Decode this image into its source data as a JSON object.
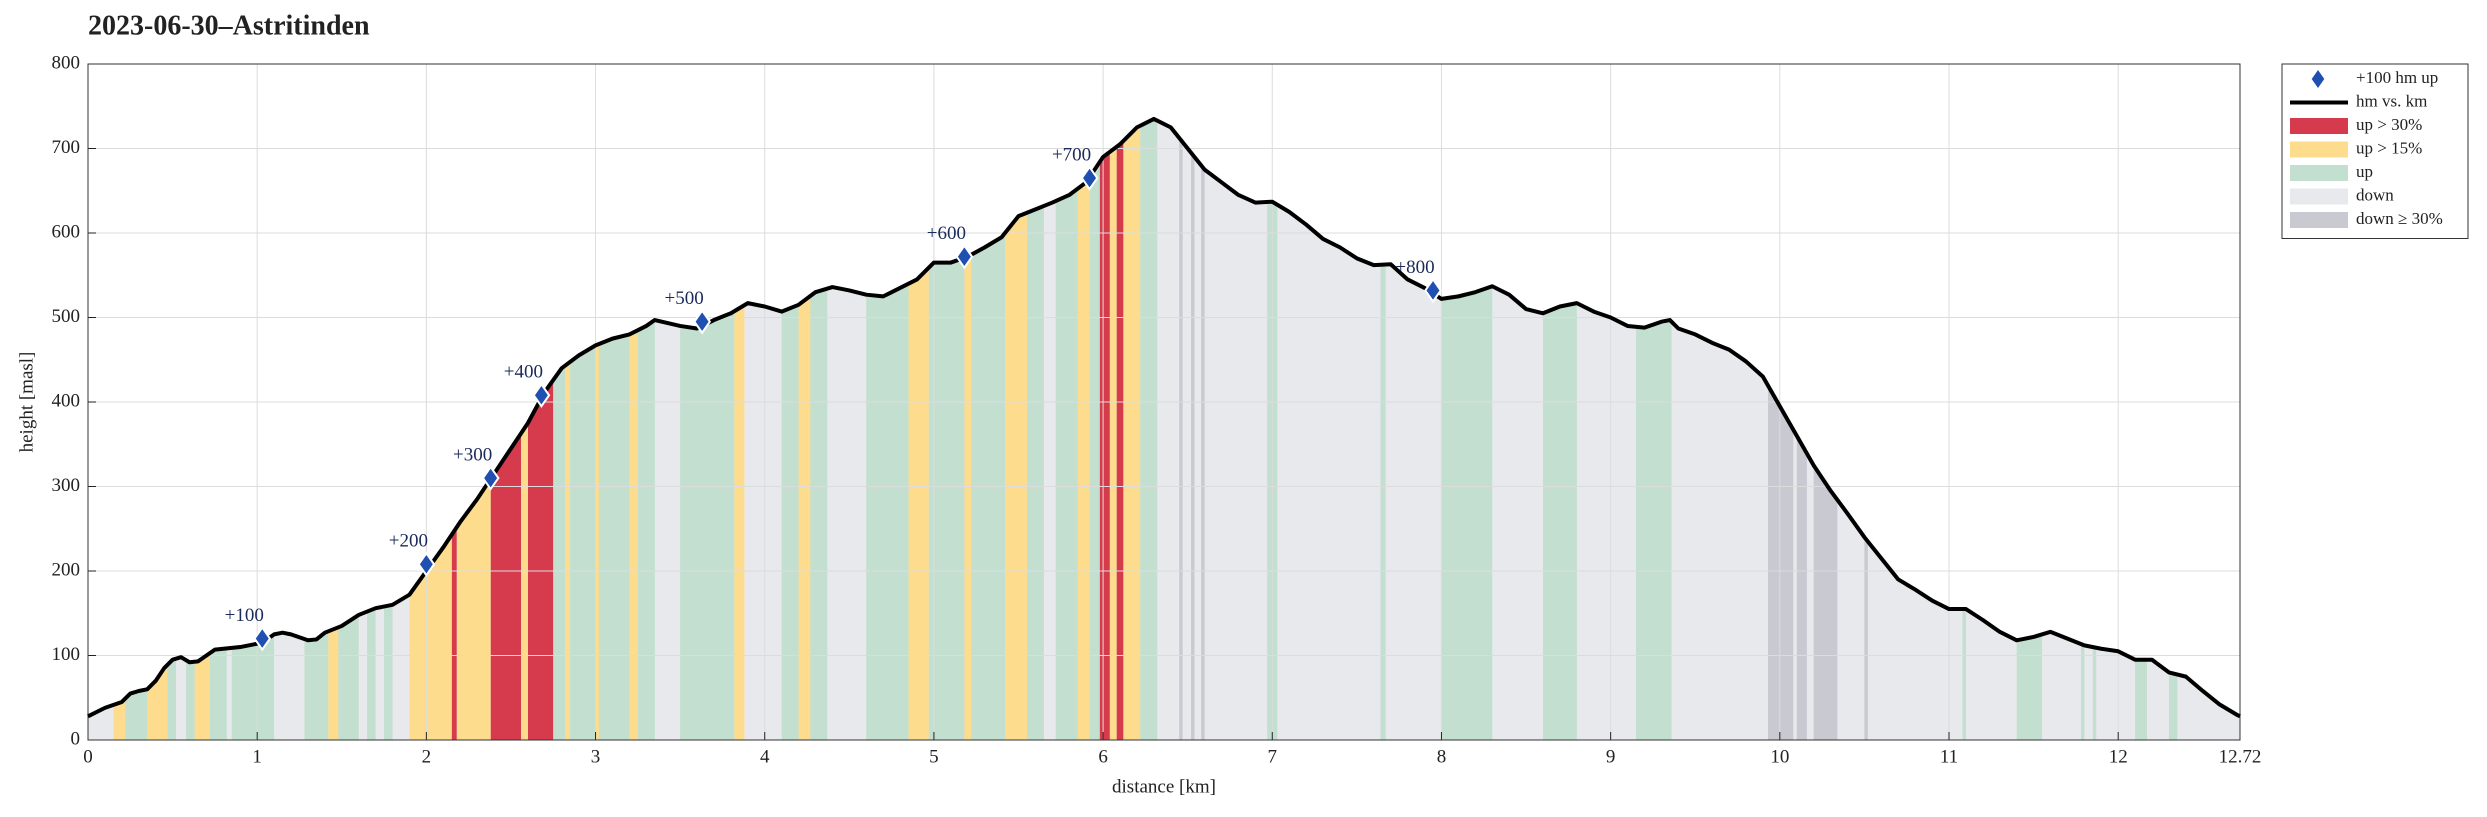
{
  "chart_data": {
    "type": "elevation",
    "title": "2023-06-30–Astritinden",
    "xlabel": "distance [km]",
    "ylabel": "height [masl]",
    "xlim": [
      0,
      12.72
    ],
    "ylim": [
      0,
      800
    ],
    "xticks": [
      0,
      1,
      2,
      3,
      4,
      5,
      6,
      7,
      8,
      9,
      10,
      11,
      12,
      12.72
    ],
    "yticks": [
      0,
      100,
      200,
      300,
      400,
      500,
      600,
      700,
      800
    ],
    "grid": true,
    "legend": "outside-right",
    "profile": {
      "name": "hm vs. km",
      "color": "#000000",
      "x": [
        0,
        0.1,
        0.2,
        0.25,
        0.3,
        0.35,
        0.4,
        0.45,
        0.5,
        0.55,
        0.6,
        0.65,
        0.7,
        0.75,
        0.8,
        0.9,
        1.0,
        1.05,
        1.1,
        1.15,
        1.2,
        1.3,
        1.35,
        1.4,
        1.5,
        1.6,
        1.7,
        1.8,
        1.9,
        2.0,
        2.1,
        2.2,
        2.3,
        2.4,
        2.5,
        2.6,
        2.7,
        2.8,
        2.9,
        3.0,
        3.1,
        3.2,
        3.3,
        3.35,
        3.5,
        3.6,
        3.7,
        3.8,
        3.9,
        4.0,
        4.1,
        4.2,
        4.3,
        4.4,
        4.5,
        4.6,
        4.7,
        4.8,
        4.9,
        5.0,
        5.1,
        5.2,
        5.3,
        5.4,
        5.5,
        5.6,
        5.7,
        5.8,
        5.9,
        6.0,
        6.1,
        6.2,
        6.3,
        6.4,
        6.5,
        6.6,
        6.7,
        6.8,
        6.9,
        7.0,
        7.1,
        7.2,
        7.3,
        7.4,
        7.5,
        7.6,
        7.7,
        7.8,
        7.9,
        8.0,
        8.1,
        8.2,
        8.3,
        8.4,
        8.5,
        8.6,
        8.7,
        8.8,
        8.9,
        9.0,
        9.1,
        9.2,
        9.3,
        9.35,
        9.4,
        9.5,
        9.6,
        9.7,
        9.8,
        9.9,
        10.0,
        10.1,
        10.2,
        10.3,
        10.4,
        10.5,
        10.6,
        10.7,
        10.8,
        10.9,
        11.0,
        11.1,
        11.2,
        11.3,
        11.4,
        11.5,
        11.6,
        11.7,
        11.8,
        11.9,
        12.0,
        12.1,
        12.2,
        12.3,
        12.4,
        12.5,
        12.6,
        12.7,
        12.72
      ],
      "y": [
        28,
        38,
        45,
        55,
        58,
        60,
        70,
        85,
        95,
        98,
        92,
        93,
        100,
        107,
        108,
        110,
        114,
        118,
        125,
        127,
        125,
        118,
        119,
        127,
        135,
        148,
        156,
        160,
        172,
        200,
        228,
        258,
        285,
        315,
        345,
        375,
        412,
        440,
        455,
        467,
        475,
        480,
        490,
        497,
        490,
        487,
        497,
        505,
        517,
        513,
        507,
        515,
        530,
        536,
        532,
        527,
        525,
        535,
        545,
        565,
        565,
        572,
        583,
        595,
        620,
        628,
        636,
        645,
        660,
        690,
        705,
        725,
        735,
        725,
        700,
        675,
        660,
        645,
        636,
        637,
        625,
        610,
        593,
        583,
        570,
        562,
        563,
        545,
        535,
        522,
        525,
        530,
        537,
        527,
        510,
        505,
        513,
        517,
        507,
        500,
        490,
        488,
        495,
        497,
        487,
        480,
        470,
        462,
        448,
        430,
        395,
        360,
        325,
        295,
        268,
        240,
        215,
        190,
        178,
        165,
        155,
        155,
        142,
        128,
        118,
        122,
        128,
        120,
        112,
        108,
        105,
        95,
        95,
        80,
        75,
        58,
        42,
        30,
        28
      ]
    },
    "markers": {
      "name": "+100 hm up",
      "color": "#1f4fb0",
      "labels": [
        "+100",
        "+200",
        "+300",
        "+400",
        "+500",
        "+600",
        "+700",
        "+800"
      ],
      "x": [
        1.03,
        2.0,
        2.38,
        2.68,
        3.63,
        5.18,
        5.92,
        7.95
      ],
      "values": [
        120,
        208,
        310,
        408,
        495,
        572,
        665,
        532
      ]
    },
    "bands": [
      {
        "name": "up > 30%",
        "color": "#d63a4d",
        "ranges": [
          [
            2.15,
            2.18
          ],
          [
            2.38,
            2.56
          ],
          [
            2.6,
            2.75
          ],
          [
            5.98,
            6.04
          ],
          [
            6.08,
            6.12
          ]
        ]
      },
      {
        "name": "up > 15%",
        "color": "#fedc8d",
        "ranges": [
          [
            0.15,
            0.22
          ],
          [
            0.35,
            0.47
          ],
          [
            0.63,
            0.72
          ],
          [
            1.42,
            1.48
          ],
          [
            1.9,
            2.15
          ],
          [
            2.18,
            2.38
          ],
          [
            2.56,
            2.6
          ],
          [
            2.82,
            2.85
          ],
          [
            3.0,
            3.02
          ],
          [
            3.2,
            3.25
          ],
          [
            3.82,
            3.88
          ],
          [
            4.2,
            4.27
          ],
          [
            4.85,
            4.97
          ],
          [
            5.18,
            5.22
          ],
          [
            5.42,
            5.55
          ],
          [
            5.85,
            5.92
          ],
          [
            6.04,
            6.08
          ],
          [
            6.12,
            6.22
          ]
        ]
      },
      {
        "name": "up",
        "color": "#c2dfcf",
        "ranges": [
          [
            0.22,
            0.35
          ],
          [
            0.47,
            0.52
          ],
          [
            0.58,
            0.63
          ],
          [
            0.72,
            0.82
          ],
          [
            0.85,
            1.1
          ],
          [
            1.28,
            1.42
          ],
          [
            1.48,
            1.6
          ],
          [
            1.65,
            1.7
          ],
          [
            1.75,
            1.8
          ],
          [
            2.75,
            2.82
          ],
          [
            2.85,
            3.0
          ],
          [
            3.02,
            3.2
          ],
          [
            3.25,
            3.35
          ],
          [
            3.5,
            3.82
          ],
          [
            4.1,
            4.2
          ],
          [
            4.27,
            4.37
          ],
          [
            4.6,
            4.85
          ],
          [
            4.97,
            5.18
          ],
          [
            5.22,
            5.42
          ],
          [
            5.55,
            5.65
          ],
          [
            5.72,
            5.85
          ],
          [
            5.92,
            5.98
          ],
          [
            6.22,
            6.32
          ],
          [
            6.97,
            7.03
          ],
          [
            7.64,
            7.67
          ],
          [
            8.0,
            8.3
          ],
          [
            8.6,
            8.8
          ],
          [
            9.15,
            9.36
          ],
          [
            11.08,
            11.1
          ],
          [
            11.4,
            11.55
          ],
          [
            11.78,
            11.8
          ],
          [
            11.85,
            11.87
          ],
          [
            12.1,
            12.17
          ],
          [
            12.3,
            12.35
          ]
        ]
      },
      {
        "name": "down",
        "color": "#e8e9ec",
        "ranges": [
          [
            0,
            12.72
          ]
        ]
      },
      {
        "name": "down ≥ 30%",
        "color": "#c8c9d1",
        "ranges": [
          [
            6.45,
            6.47
          ],
          [
            6.52,
            6.54
          ],
          [
            6.58,
            6.6
          ],
          [
            9.93,
            10.08
          ],
          [
            10.1,
            10.16
          ],
          [
            10.2,
            10.34
          ],
          [
            10.5,
            10.52
          ]
        ]
      }
    ]
  }
}
